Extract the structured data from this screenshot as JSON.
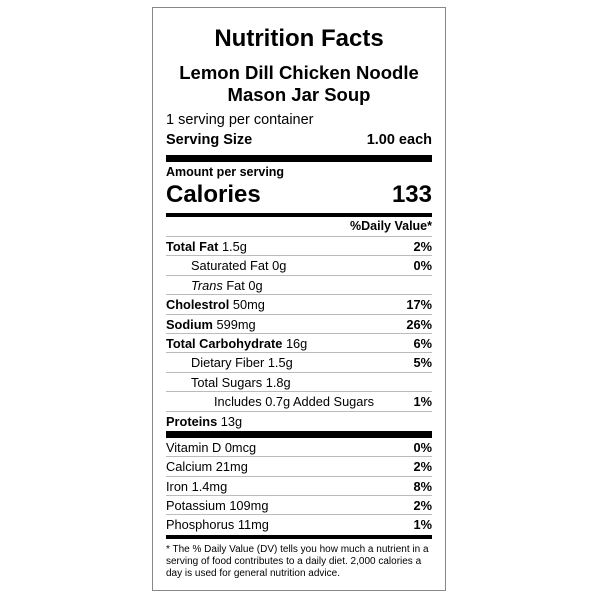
{
  "title": "Nutrition Facts",
  "product_name": [
    "Lemon Dill Chicken Noodle",
    "Mason Jar Soup"
  ],
  "servings_per_container": "1 serving per container",
  "serving_size": {
    "label": "Serving Size",
    "value": "1.00 each"
  },
  "amount_per_serving": "Amount per serving",
  "calories": {
    "label": "Calories",
    "value": "133"
  },
  "daily_value_header": "%Daily Value*",
  "nutrients": [
    {
      "name": "Total Fat",
      "amount": "1.5g",
      "dv": "2%",
      "bold": true,
      "indent": 0
    },
    {
      "name": "Saturated Fat",
      "amount": "0g",
      "dv": "0%",
      "bold": false,
      "indent": 1
    },
    {
      "name": "Trans",
      "name_rest": "Fat",
      "amount": "0g",
      "dv": "",
      "bold": false,
      "indent": 1,
      "italic": true
    },
    {
      "name": "Cholestrol",
      "amount": "50mg",
      "dv": "17%",
      "bold": true,
      "indent": 0
    },
    {
      "name": "Sodium",
      "amount": "599mg",
      "dv": "26%",
      "bold": true,
      "indent": 0
    },
    {
      "name": "Total Carbohydrate",
      "amount": "16g",
      "dv": "6%",
      "bold": true,
      "indent": 0
    },
    {
      "name": "Dietary Fiber",
      "amount": "1.5g",
      "dv": "5%",
      "bold": false,
      "indent": 1
    },
    {
      "name": "Total Sugars",
      "amount": "1.8g",
      "dv": "",
      "bold": false,
      "indent": 1
    },
    {
      "name": "Includes 0.7g Added Sugars",
      "amount": "",
      "dv": "1%",
      "bold": false,
      "indent": 2
    },
    {
      "name": "Proteins",
      "amount": "13g",
      "dv": "",
      "bold": true,
      "indent": 0
    }
  ],
  "vitamins": [
    {
      "name": "Vitamin D",
      "amount": "0mcg",
      "dv": "0%"
    },
    {
      "name": "Calcium",
      "amount": "21mg",
      "dv": "2%"
    },
    {
      "name": "Iron",
      "amount": "1.4mg",
      "dv": "8%"
    },
    {
      "name": "Potassium",
      "amount": "109mg",
      "dv": "2%"
    },
    {
      "name": "Phosphorus",
      "amount": "11mg",
      "dv": "1%"
    }
  ],
  "footnote": "* The % Daily Value (DV) tells you how much a nutrient in a serving of food contributes to a daily diet. 2,000 calories a day is used for general nutrition advice."
}
